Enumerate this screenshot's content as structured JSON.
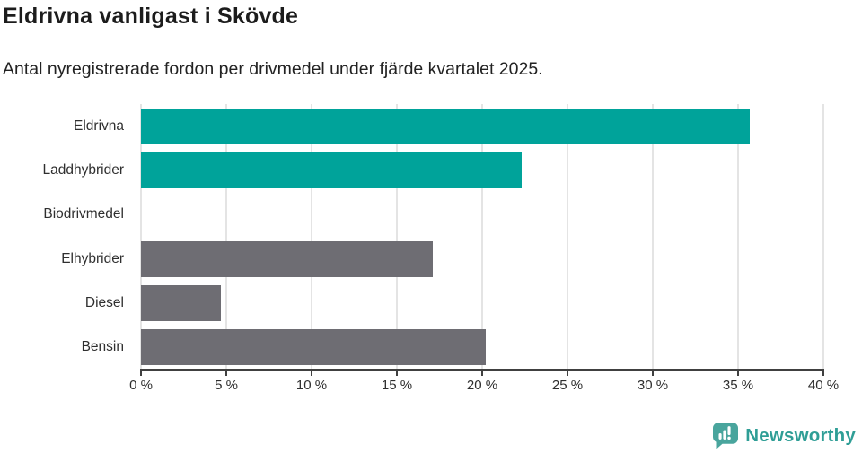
{
  "header": {
    "title": "Eldrivna vanligast i Skövde",
    "subtitle": "Antal nyregistrerade fordon per drivmedel under fjärde kvartalet 2025."
  },
  "chart_data": {
    "type": "bar",
    "orientation": "horizontal",
    "title": "Eldrivna vanligast i Skövde",
    "subtitle": "Antal nyregistrerade fordon per drivmedel under fjärde kvartalet 2025.",
    "categories": [
      "Eldrivna",
      "Laddhybrider",
      "Biodrivmedel",
      "Elhybrider",
      "Diesel",
      "Bensin"
    ],
    "values": [
      35.7,
      22.3,
      0,
      17.1,
      4.7,
      20.2
    ],
    "unit": "%",
    "bar_colors": [
      "#00a39a",
      "#00a39a",
      "#6e6d73",
      "#6e6d73",
      "#6e6d73",
      "#6e6d73"
    ],
    "xlim": [
      0,
      40
    ],
    "xticks": [
      0,
      5,
      10,
      15,
      20,
      25,
      30,
      35,
      40
    ],
    "xtick_labels": [
      "0 %",
      "5 %",
      "10 %",
      "15 %",
      "20 %",
      "25 %",
      "30 %",
      "35 %",
      "40 %"
    ],
    "xlabel": "",
    "ylabel": "",
    "grid": true,
    "legend": false
  },
  "colors": {
    "accent_teal": "#00a39a",
    "bar_gray": "#6e6d73",
    "gridline": "#e4e4e4",
    "axis": "#404040",
    "title_text": "#1c1c1c",
    "brand_teal": "#2f9e96",
    "logo_fill": "#49a59d"
  },
  "footer": {
    "brand": "Newsworthy",
    "logo_icon": "newsworthy-speech-bubble-bar-chart-icon"
  }
}
